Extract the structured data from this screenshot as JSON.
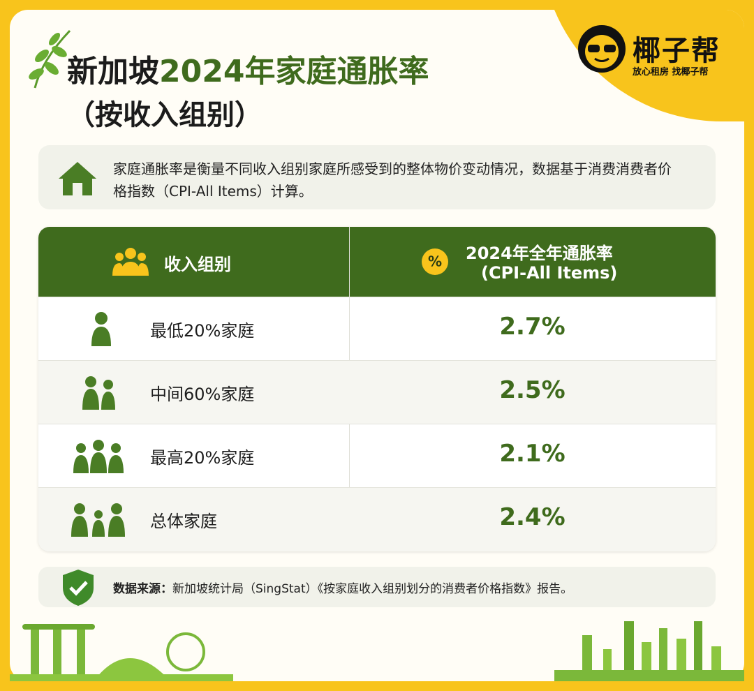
{
  "brand": {
    "name": "椰子帮",
    "slogan": "放心租房  找椰子帮"
  },
  "header": {
    "title_part1": "新加坡",
    "title_highlight": "2024年家庭通胀率",
    "subtitle": "（按收入组别）"
  },
  "intro": "家庭通胀率是衡量不同收入组别家庭所感受到的整体物价变动情况，数据基于消费消费者价格指数（CPI-All Items）计算。",
  "table": {
    "columns": [
      "收入组别",
      "2024年全年通胀率"
    ],
    "column_note": "(CPI-All Items)",
    "percent_icon": "%",
    "rows": [
      [
        "最低20%家庭",
        "2.7%"
      ],
      [
        "中间60%家庭",
        "2.5%"
      ],
      [
        "最高20%家庭",
        "2.1%"
      ],
      [
        "总体家庭",
        "2.4%"
      ]
    ]
  },
  "source": {
    "label": "数据来源：",
    "text": "新加坡统计局（SingStat）《按家庭收入组别划分的消费者价格指数》报告。"
  }
}
